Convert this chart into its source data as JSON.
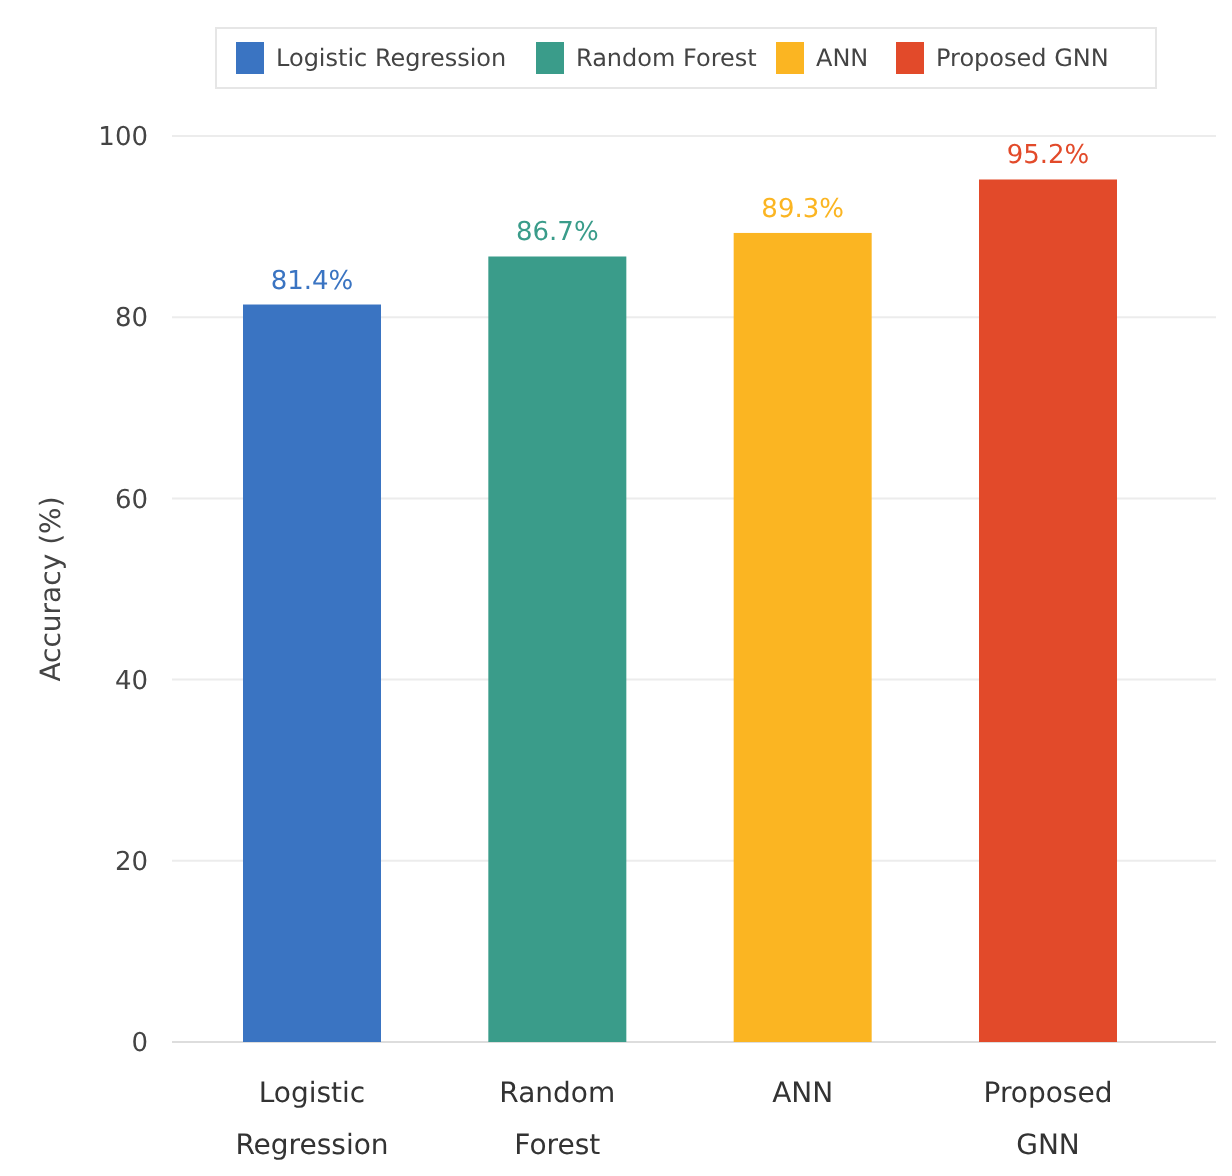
{
  "chart_data": {
    "type": "bar",
    "ylabel": "Accuracy (%)",
    "categories": [
      "Logistic Regression",
      "Random Forest",
      "ANN",
      "Proposed GNN"
    ],
    "series": [
      {
        "name": "Logistic Regression",
        "color": "#3a74c2",
        "values": [
          81.4,
          null,
          null,
          null
        ],
        "value_labels": [
          "81.4%",
          null,
          null,
          null
        ]
      },
      {
        "name": "Random Forest",
        "color": "#3a9c8a",
        "values": [
          null,
          86.7,
          null,
          null
        ],
        "value_labels": [
          null,
          "86.7%",
          null,
          null
        ]
      },
      {
        "name": "ANN",
        "color": "#fbb522",
        "values": [
          null,
          null,
          89.3,
          null
        ],
        "value_labels": [
          null,
          null,
          "89.3%",
          null
        ]
      },
      {
        "name": "Proposed GNN",
        "color": "#e24a2a",
        "values": [
          null,
          null,
          null,
          95.2
        ],
        "value_labels": [
          null,
          null,
          null,
          "95.2%"
        ]
      }
    ],
    "ylim": [
      0,
      100
    ],
    "yticks": [
      0,
      20,
      40,
      60,
      80,
      100
    ],
    "grid": "y",
    "legend": "top"
  }
}
